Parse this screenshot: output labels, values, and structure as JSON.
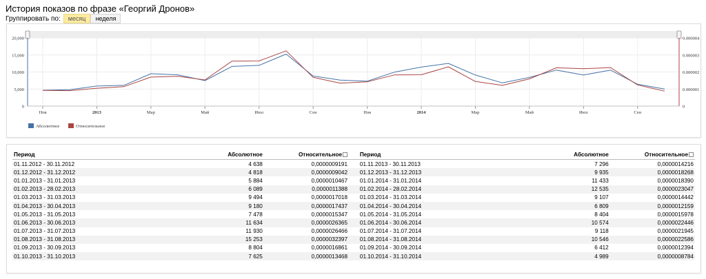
{
  "page": {
    "title": "История показов по фразе «Георгий Дронов»",
    "group_label": "Группировать по:",
    "group_options": [
      "месяц",
      "неделя"
    ]
  },
  "chart_data": {
    "type": "line",
    "x": [
      "11.2012",
      "12.2012",
      "01.2013",
      "02.2013",
      "03.2013",
      "04.2013",
      "05.2013",
      "06.2013",
      "07.2013",
      "08.2013",
      "09.2013",
      "10.2013",
      "11.2013",
      "12.2013",
      "01.2014",
      "02.2014",
      "03.2014",
      "04.2014",
      "05.2014",
      "06.2014",
      "07.2014",
      "08.2014",
      "09.2014",
      "10.2014"
    ],
    "x_tick_labels": [
      "Ноя",
      "2013",
      "Мар",
      "Май",
      "Июл",
      "Сен",
      "Ноя",
      "2014",
      "Мар",
      "Май",
      "Июл",
      "Сен"
    ],
    "series": [
      {
        "name": "Абсолютное",
        "axis": "left",
        "color": "#4572a7",
        "values": [
          4638,
          4818,
          5884,
          6089,
          9494,
          9180,
          7478,
          11634,
          11930,
          15253,
          8804,
          7625,
          7296,
          9935,
          11433,
          12535,
          9107,
          6809,
          8404,
          10574,
          9118,
          10546,
          6412,
          4989
        ]
      },
      {
        "name": "Относительное",
        "axis": "right",
        "color": "#aa4643",
        "values": [
          9.191e-07,
          9.042e-07,
          1.0467e-06,
          1.1388e-06,
          1.7018e-06,
          1.7437e-06,
          1.5347e-06,
          2.6365e-06,
          2.6466e-06,
          3.2397e-06,
          1.6861e-06,
          1.3468e-06,
          1.4216e-06,
          1.8268e-06,
          1.839e-06,
          2.3047e-06,
          1.4442e-06,
          1.2159e-06,
          1.5978e-06,
          2.2446e-06,
          2.1945e-06,
          2.2586e-06,
          1.2394e-06,
          8.784e-07
        ]
      }
    ],
    "y_left": {
      "ylim": [
        0,
        20000
      ],
      "ticks": [
        "0",
        "5,000",
        "10,000",
        "15,000",
        "20,000"
      ]
    },
    "y_right": {
      "ylim": [
        0,
        4e-06
      ],
      "ticks": [
        "0",
        "0.000001",
        "0.000002",
        "0.000003",
        "0.000004"
      ]
    },
    "grid": true,
    "legend_position": "bottom-left"
  },
  "table": {
    "headers": [
      "Период",
      "Абсолютное",
      "Относительное"
    ],
    "left": [
      [
        "01.11.2012 - 30.11.2012",
        "4 638",
        "0,0000009191"
      ],
      [
        "01.12.2012 - 31.12.2012",
        "4 818",
        "0,0000009042"
      ],
      [
        "01.01.2013 - 31.01.2013",
        "5 884",
        "0,0000010467"
      ],
      [
        "01.02.2013 - 28.02.2013",
        "6 089",
        "0,0000011388"
      ],
      [
        "01.03.2013 - 31.03.2013",
        "9 494",
        "0,0000017018"
      ],
      [
        "01.04.2013 - 30.04.2013",
        "9 180",
        "0,0000017437"
      ],
      [
        "01.05.2013 - 31.05.2013",
        "7 478",
        "0,0000015347"
      ],
      [
        "01.06.2013 - 30.06.2013",
        "11 634",
        "0,0000026365"
      ],
      [
        "01.07.2013 - 31.07.2013",
        "11 930",
        "0,0000026466"
      ],
      [
        "01.08.2013 - 31.08.2013",
        "15 253",
        "0,0000032397"
      ],
      [
        "01.09.2013 - 30.09.2013",
        "8 804",
        "0,0000016861"
      ],
      [
        "01.10.2013 - 31.10.2013",
        "7 625",
        "0,0000013468"
      ]
    ],
    "right": [
      [
        "01.11.2013 - 30.11.2013",
        "7 296",
        "0,0000014216"
      ],
      [
        "01.12.2013 - 31.12.2013",
        "9 935",
        "0,0000018268"
      ],
      [
        "01.01.2014 - 31.01.2014",
        "11 433",
        "0,0000018390"
      ],
      [
        "01.02.2014 - 28.02.2014",
        "12 535",
        "0,0000023047"
      ],
      [
        "01.03.2014 - 31.03.2014",
        "9 107",
        "0,0000014442"
      ],
      [
        "01.04.2014 - 30.04.2014",
        "6 809",
        "0,0000012159"
      ],
      [
        "01.05.2014 - 31.05.2014",
        "8 404",
        "0,0000015978"
      ],
      [
        "01.06.2014 - 30.06.2014",
        "10 574",
        "0,0000022446"
      ],
      [
        "01.07.2014 - 31.07.2014",
        "9 118",
        "0,0000021945"
      ],
      [
        "01.08.2014 - 31.08.2014",
        "10 546",
        "0,0000022586"
      ],
      [
        "01.09.2014 - 30.09.2014",
        "6 412",
        "0,0000012394"
      ],
      [
        "01.10.2014 - 31.10.2014",
        "4 989",
        "0,0000008784"
      ]
    ]
  }
}
